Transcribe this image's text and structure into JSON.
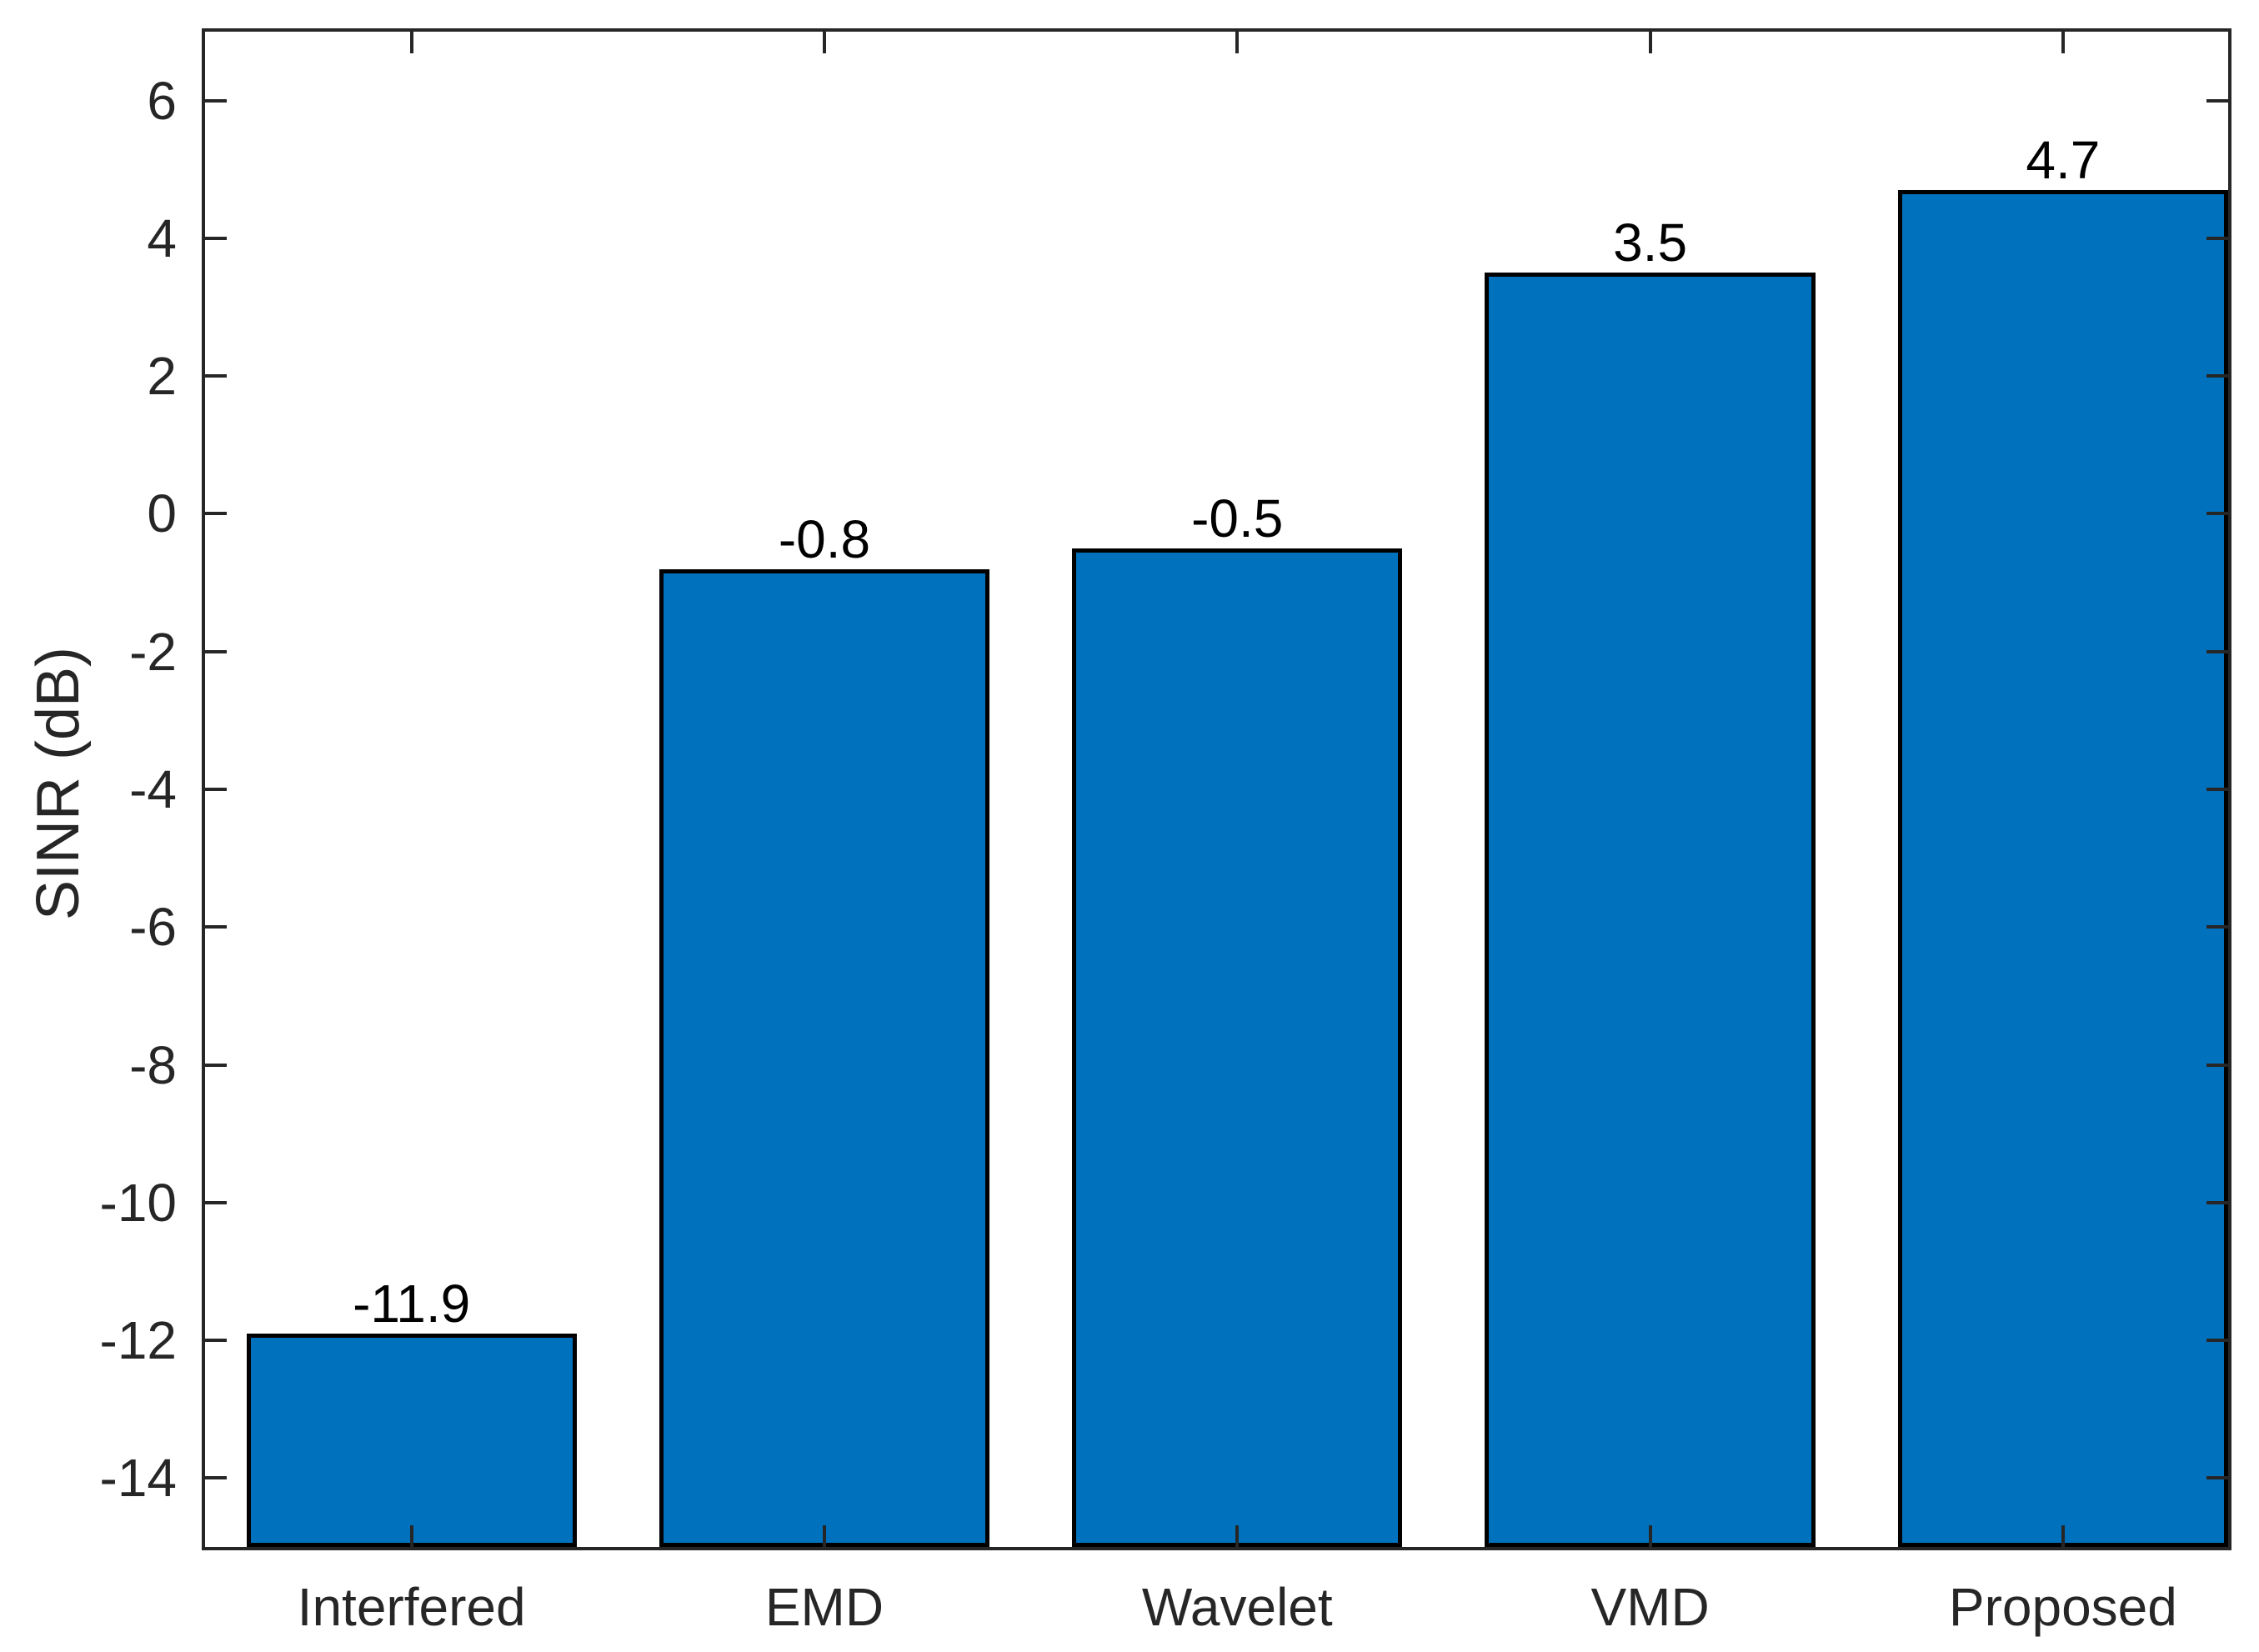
{
  "figure": {
    "background": "#ffffff"
  },
  "style": {
    "axis_color": "#262626",
    "tick_label_color": "#262626",
    "value_label_color": "#000000",
    "bar_fill": "#0072BD",
    "bar_edge": "#000000"
  },
  "chart_data": {
    "type": "bar",
    "title": "",
    "xlabel": "",
    "ylabel": "SINR (dB)",
    "categories": [
      "Interfered",
      "EMD",
      "Wavelet",
      "VMD",
      "Proposed"
    ],
    "values": [
      -11.9,
      -0.8,
      -0.5,
      3.5,
      4.7
    ],
    "bar_value_labels": [
      "-11.9",
      "-0.8",
      "-0.5",
      "3.5",
      "4.7"
    ],
    "series_name": "SINR",
    "y_ticks": [
      -14,
      -12,
      -10,
      -8,
      -6,
      -4,
      -2,
      0,
      2,
      4,
      6
    ],
    "y_tick_labels": [
      "-14",
      "-12",
      "-10",
      "-8",
      "-6",
      "-4",
      "-2",
      "0",
      "2",
      "4",
      "6"
    ],
    "ylim": [
      -15,
      7
    ],
    "xlim": [
      0.5,
      5.4
    ],
    "bar_width_units": 0.8,
    "grid": false,
    "legend_position": "none"
  }
}
